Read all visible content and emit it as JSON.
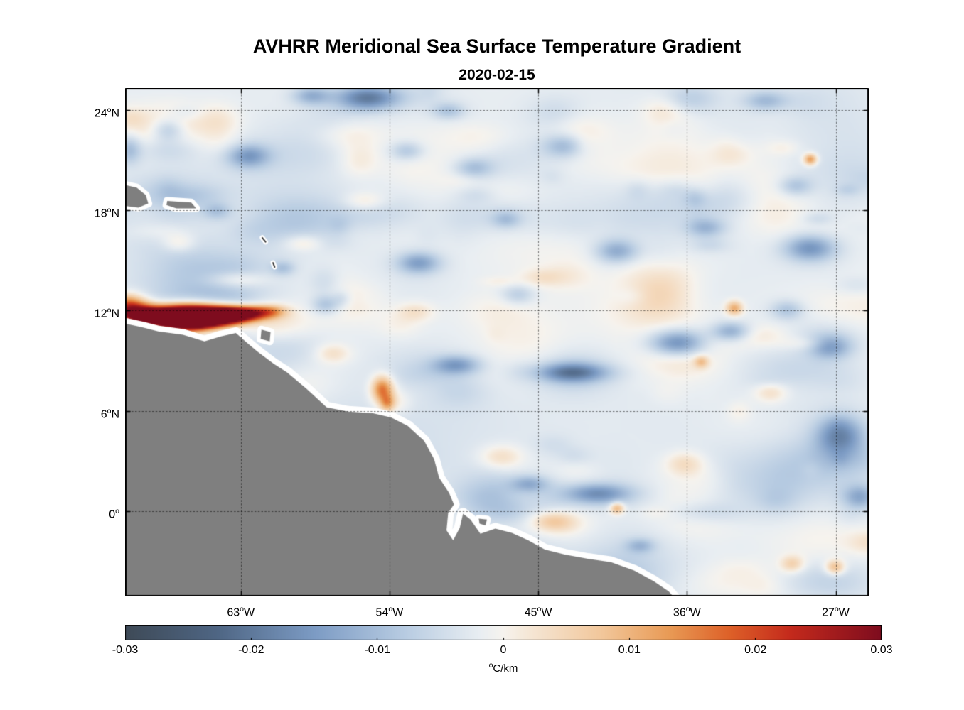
{
  "chart_data": {
    "type": "heatmap",
    "title": "AVHRR Meridional Sea Surface Temperature Gradient",
    "date": "2020-02-15",
    "units": "°C/km",
    "unit_display": {
      "sup": "o",
      "text": "C/km"
    },
    "degree_glyph": "o",
    "color_range": [
      -0.03,
      0.03
    ],
    "lon_range": [
      -70,
      -25
    ],
    "lat_range": [
      -5.1,
      25.3
    ],
    "lon_ticks": [
      {
        "value": -63,
        "label": "63",
        "suffix": "W"
      },
      {
        "value": -54,
        "label": "54",
        "suffix": "W"
      },
      {
        "value": -45,
        "label": "45",
        "suffix": "W"
      },
      {
        "value": -36,
        "label": "36",
        "suffix": "W"
      },
      {
        "value": -27,
        "label": "27",
        "suffix": "W"
      }
    ],
    "lat_ticks": [
      {
        "value": 24,
        "label": "24",
        "suffix": "N"
      },
      {
        "value": 18,
        "label": "18",
        "suffix": "N"
      },
      {
        "value": 12,
        "label": "12",
        "suffix": "N"
      },
      {
        "value": 6,
        "label": "6",
        "suffix": "N"
      },
      {
        "value": 0,
        "label": "0",
        "suffix": ""
      }
    ],
    "colorbar_ticks": [
      {
        "value": -0.03,
        "label": "-0.03"
      },
      {
        "value": -0.02,
        "label": "-0.02"
      },
      {
        "value": -0.01,
        "label": "-0.01"
      },
      {
        "value": 0,
        "label": "0"
      },
      {
        "value": 0.01,
        "label": "0.01"
      },
      {
        "value": 0.02,
        "label": "0.02"
      },
      {
        "value": 0.03,
        "label": "0.03"
      }
    ],
    "colormap": [
      {
        "t": 0.0,
        "c": "#3E4A57"
      },
      {
        "t": 0.12,
        "c": "#4E6583"
      },
      {
        "t": 0.25,
        "c": "#7C9BC4"
      },
      {
        "t": 0.37,
        "c": "#B8CCE2"
      },
      {
        "t": 0.47,
        "c": "#E9EEF2"
      },
      {
        "t": 0.5,
        "c": "#F6F3EE"
      },
      {
        "t": 0.53,
        "c": "#F5E8D8"
      },
      {
        "t": 0.63,
        "c": "#F2C79B"
      },
      {
        "t": 0.72,
        "c": "#E89A55"
      },
      {
        "t": 0.8,
        "c": "#DD6028"
      },
      {
        "t": 0.88,
        "c": "#C42A1C"
      },
      {
        "t": 1.0,
        "c": "#7E0C1E"
      }
    ],
    "land_color": "#7f7f7f",
    "coast_halo_color": "#ffffff",
    "grid_color": "rgba(0,0,0,0.6)",
    "texture": {
      "seed": 20200215,
      "count": 300,
      "max_amp": 0.0055,
      "broad_count": 9,
      "broad_amp": 0.0022,
      "base": -0.0018
    },
    "features_format": [
      "lon",
      "lat",
      "sigma_lon_deg",
      "sigma_lat_deg",
      "amplitude_C_per_km"
    ],
    "features": [
      [
        -69.9,
        12.4,
        0.8,
        0.45,
        0.02
      ],
      [
        -69.2,
        11.8,
        0.9,
        0.38,
        0.03
      ],
      [
        -67.6,
        11.65,
        1.1,
        0.45,
        0.046
      ],
      [
        -66.2,
        11.6,
        1.0,
        0.5,
        0.05
      ],
      [
        -64.9,
        11.7,
        1.0,
        0.42,
        0.046
      ],
      [
        -63.6,
        11.8,
        0.9,
        0.36,
        0.034
      ],
      [
        -62.4,
        11.9,
        0.8,
        0.3,
        0.02
      ],
      [
        -61.2,
        12.0,
        0.7,
        0.28,
        0.012
      ],
      [
        -54.5,
        7.35,
        0.45,
        0.55,
        0.019
      ],
      [
        -54.2,
        6.5,
        0.3,
        0.35,
        0.011
      ],
      [
        -33.2,
        12.2,
        0.35,
        0.3,
        0.013
      ],
      [
        -28.6,
        21.1,
        0.28,
        0.24,
        0.016
      ],
      [
        -40.3,
        0.25,
        0.3,
        0.25,
        0.013
      ],
      [
        -27.1,
        -3.3,
        0.4,
        0.3,
        0.012
      ],
      [
        -29.7,
        -3.1,
        0.5,
        0.35,
        0.008
      ],
      [
        -35.2,
        9.0,
        0.3,
        0.25,
        0.009
      ],
      [
        -63.3,
        13.9,
        1.3,
        0.35,
        0.007
      ],
      [
        -59.3,
        16.1,
        0.8,
        0.35,
        0.005
      ],
      [
        -66.8,
        16.1,
        0.7,
        0.4,
        0.005
      ],
      [
        -55.6,
        18.6,
        0.9,
        0.4,
        0.005
      ],
      [
        -47.3,
        3.3,
        0.9,
        0.5,
        0.006
      ],
      [
        -44.2,
        -0.5,
        0.9,
        0.4,
        0.007
      ],
      [
        -36.2,
        2.9,
        0.8,
        0.5,
        0.006
      ],
      [
        -31.0,
        7.2,
        0.7,
        0.45,
        0.006
      ],
      [
        -52.5,
        12.0,
        0.8,
        0.4,
        0.005
      ],
      [
        -57.5,
        9.5,
        0.7,
        0.4,
        0.005
      ],
      [
        -55.4,
        24.75,
        1.3,
        0.5,
        -0.016
      ],
      [
        -58.8,
        24.9,
        0.8,
        0.4,
        -0.01
      ],
      [
        -62.6,
        21.3,
        0.9,
        0.5,
        -0.012
      ],
      [
        -67.4,
        22.9,
        0.7,
        0.5,
        -0.011
      ],
      [
        -69.8,
        21.7,
        0.5,
        0.6,
        -0.008
      ],
      [
        -52.3,
        14.9,
        0.9,
        0.45,
        -0.012
      ],
      [
        -49.0,
        20.6,
        0.8,
        0.4,
        -0.007
      ],
      [
        -43.5,
        21.9,
        0.9,
        0.5,
        -0.009
      ],
      [
        -40.3,
        15.6,
        0.9,
        0.5,
        -0.011
      ],
      [
        -36.6,
        10.1,
        1.2,
        0.55,
        -0.017
      ],
      [
        -33.4,
        10.8,
        0.8,
        0.4,
        -0.011
      ],
      [
        -43.0,
        8.35,
        1.5,
        0.4,
        -0.015
      ],
      [
        -50.0,
        8.8,
        1.0,
        0.4,
        -0.012
      ],
      [
        -41.5,
        1.1,
        1.4,
        0.45,
        -0.015
      ],
      [
        -45.6,
        1.7,
        0.8,
        0.35,
        -0.009
      ],
      [
        -28.6,
        15.8,
        1.1,
        0.55,
        -0.014
      ],
      [
        -27.4,
        9.9,
        0.9,
        0.5,
        -0.012
      ],
      [
        -26.8,
        4.6,
        1.0,
        0.8,
        -0.014
      ],
      [
        -25.6,
        0.9,
        0.7,
        0.5,
        -0.01
      ],
      [
        -31.3,
        24.6,
        0.9,
        0.4,
        -0.008
      ],
      [
        -34.9,
        17.0,
        0.8,
        0.4,
        -0.008
      ],
      [
        -30.0,
        12.1,
        0.7,
        0.4,
        -0.007
      ],
      [
        -47.9,
        -1.6,
        0.5,
        0.3,
        -0.008
      ],
      [
        -38.9,
        -2.0,
        0.6,
        0.3,
        -0.007
      ],
      [
        -57.9,
        12.4,
        0.6,
        0.4,
        -0.008
      ],
      [
        -53.0,
        21.6,
        0.7,
        0.4,
        -0.007
      ],
      [
        -46.3,
        13.0,
        0.7,
        0.4,
        -0.006
      ],
      [
        -60.5,
        14.6,
        0.5,
        0.3,
        -0.006
      ],
      [
        -64.5,
        18.0,
        0.6,
        0.35,
        -0.006
      ],
      [
        -50.5,
        24.0,
        0.7,
        0.35,
        -0.007
      ],
      [
        -47.0,
        17.5,
        0.6,
        0.35,
        -0.006
      ],
      [
        -29.5,
        19.5,
        0.7,
        0.4,
        -0.007
      ]
    ],
    "coastline": {
      "mainland": [
        [
          -70.4,
          11.3
        ],
        [
          -69.0,
          11.0
        ],
        [
          -68.0,
          10.75
        ],
        [
          -66.5,
          10.55
        ],
        [
          -65.2,
          10.15
        ],
        [
          -64.2,
          10.45
        ],
        [
          -63.3,
          10.65
        ],
        [
          -62.6,
          10.05
        ],
        [
          -62.0,
          9.55
        ],
        [
          -61.0,
          8.8
        ],
        [
          -60.2,
          8.3
        ],
        [
          -59.0,
          7.3
        ],
        [
          -57.8,
          6.2
        ],
        [
          -56.5,
          5.95
        ],
        [
          -55.0,
          5.85
        ],
        [
          -53.9,
          5.6
        ],
        [
          -52.9,
          5.1
        ],
        [
          -51.9,
          4.2
        ],
        [
          -51.3,
          3.1
        ],
        [
          -51.0,
          2.0
        ],
        [
          -50.4,
          1.1
        ],
        [
          -50.1,
          0.4
        ],
        [
          -50.45,
          -0.1
        ],
        [
          -50.55,
          -1.15
        ],
        [
          -50.15,
          -1.75
        ],
        [
          -49.75,
          -1.0
        ],
        [
          -49.55,
          -0.15
        ],
        [
          -49.1,
          -0.5
        ],
        [
          -48.5,
          -1.35
        ],
        [
          -47.6,
          -1.05
        ],
        [
          -46.6,
          -1.3
        ],
        [
          -45.6,
          -1.75
        ],
        [
          -44.6,
          -2.3
        ],
        [
          -43.4,
          -2.6
        ],
        [
          -42.0,
          -2.85
        ],
        [
          -40.6,
          -3.05
        ],
        [
          -39.2,
          -3.55
        ],
        [
          -38.0,
          -4.2
        ],
        [
          -37.1,
          -4.8
        ],
        [
          -36.4,
          -5.6
        ],
        [
          -70.6,
          -5.9
        ]
      ],
      "islands": [
        [
          [
            -70.4,
            19.6
          ],
          [
            -69.3,
            19.35
          ],
          [
            -68.75,
            18.9
          ],
          [
            -68.6,
            18.4
          ],
          [
            -69.2,
            18.15
          ],
          [
            -70.4,
            18.3
          ]
        ],
        [
          [
            -67.45,
            18.55
          ],
          [
            -66.0,
            18.45
          ],
          [
            -65.7,
            18.1
          ],
          [
            -66.9,
            18.1
          ],
          [
            -67.5,
            18.3
          ]
        ],
        [
          [
            -61.75,
            10.85
          ],
          [
            -61.2,
            10.7
          ],
          [
            -61.25,
            10.15
          ],
          [
            -61.8,
            10.3
          ]
        ],
        [
          [
            -48.6,
            -0.45
          ],
          [
            -48.1,
            -0.5
          ],
          [
            -48.2,
            -0.85
          ],
          [
            -48.55,
            -0.75
          ]
        ]
      ],
      "islets": [
        [
          [
            -61.7,
            16.35
          ],
          [
            -61.5,
            16.1
          ]
        ],
        [
          [
            -61.05,
            14.85
          ],
          [
            -60.95,
            14.6
          ]
        ]
      ]
    }
  }
}
